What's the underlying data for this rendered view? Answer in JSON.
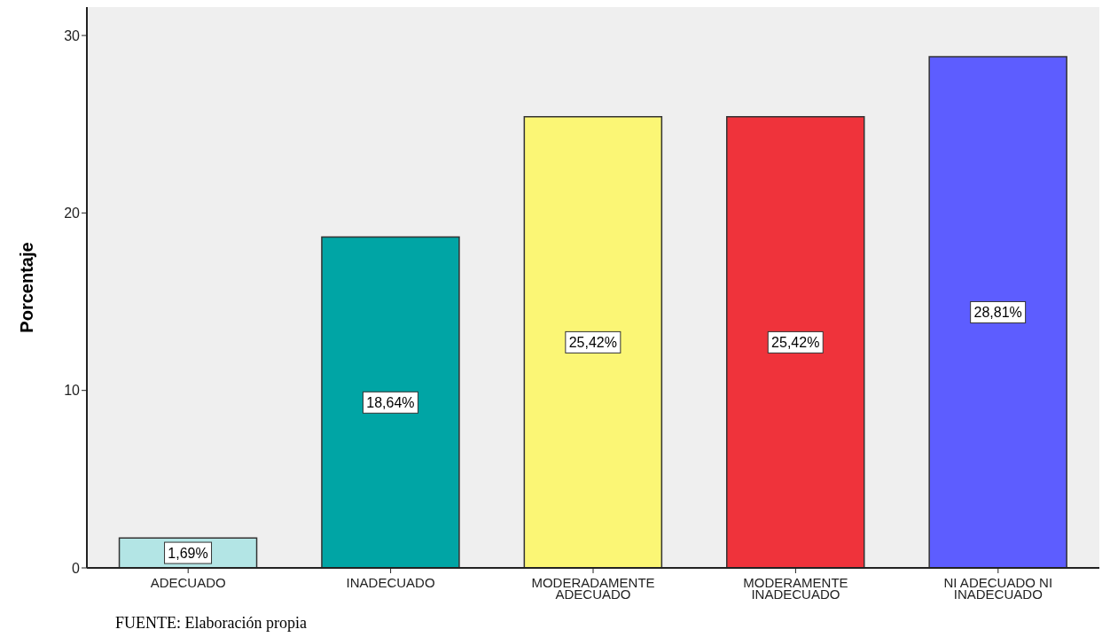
{
  "chart_data": {
    "type": "bar",
    "ylabel": "Porcentaje",
    "categories": [
      "ADECUADO",
      "INADECUADO",
      "MODERADAMENTE ADECUADO",
      "MODERAMENTE INADECUADO",
      "NI ADECUADO NI INADECUADO"
    ],
    "values": [
      1.69,
      18.64,
      25.42,
      25.42,
      28.81
    ],
    "colors": [
      "#b3e5e5",
      "#00a5a5",
      "#fbf675",
      "#ef333b",
      "#5d5dff"
    ],
    "value_labels": [
      "1,69%",
      "18,64%",
      "25,42%",
      "25,42%",
      "28,81%"
    ],
    "ylim": [
      0,
      31.6
    ],
    "yticks": [
      0,
      10,
      20,
      30
    ],
    "annotations": [
      "FUENTE: Elaboración propia"
    ]
  }
}
